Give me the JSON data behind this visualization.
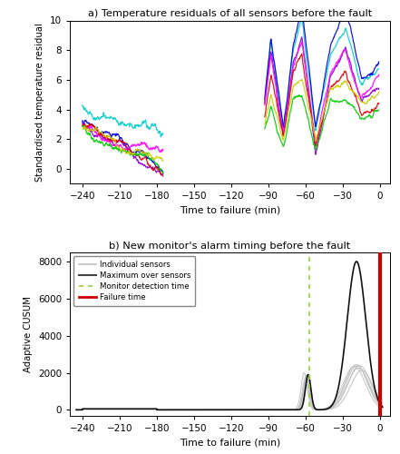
{
  "title_a": "a) Temperature residuals of all sensors before the fault",
  "title_b": "b) New monitor's alarm timing before the fault",
  "ylabel_a": "Standardised temperature residual",
  "ylabel_b": "Adaptive CUSUM",
  "xlabel": "Time to failure (min)",
  "xlim": [
    -250,
    8
  ],
  "ylim_a": [
    -1,
    10
  ],
  "ylim_b": [
    -300,
    8500
  ],
  "xticks": [
    -240,
    -210,
    -180,
    -150,
    -120,
    -90,
    -60,
    -30,
    0
  ],
  "yticks_a": [
    0,
    2,
    4,
    6,
    8,
    10
  ],
  "yticks_b": [
    0,
    2000,
    4000,
    6000,
    8000
  ],
  "sensor_colors": [
    "#00cccc",
    "#0000dd",
    "#8800cc",
    "#ff00ff",
    "#dd0000",
    "#00cc00",
    "#cccc00"
  ],
  "detection_time": -57,
  "failure_time": 0,
  "seg1_start": -240,
  "seg1_end": -175,
  "seg2_start": -93,
  "seg2_end": -1,
  "background_color": "#ffffff",
  "figsize": [
    4.41,
    5.0
  ],
  "dpi": 100
}
